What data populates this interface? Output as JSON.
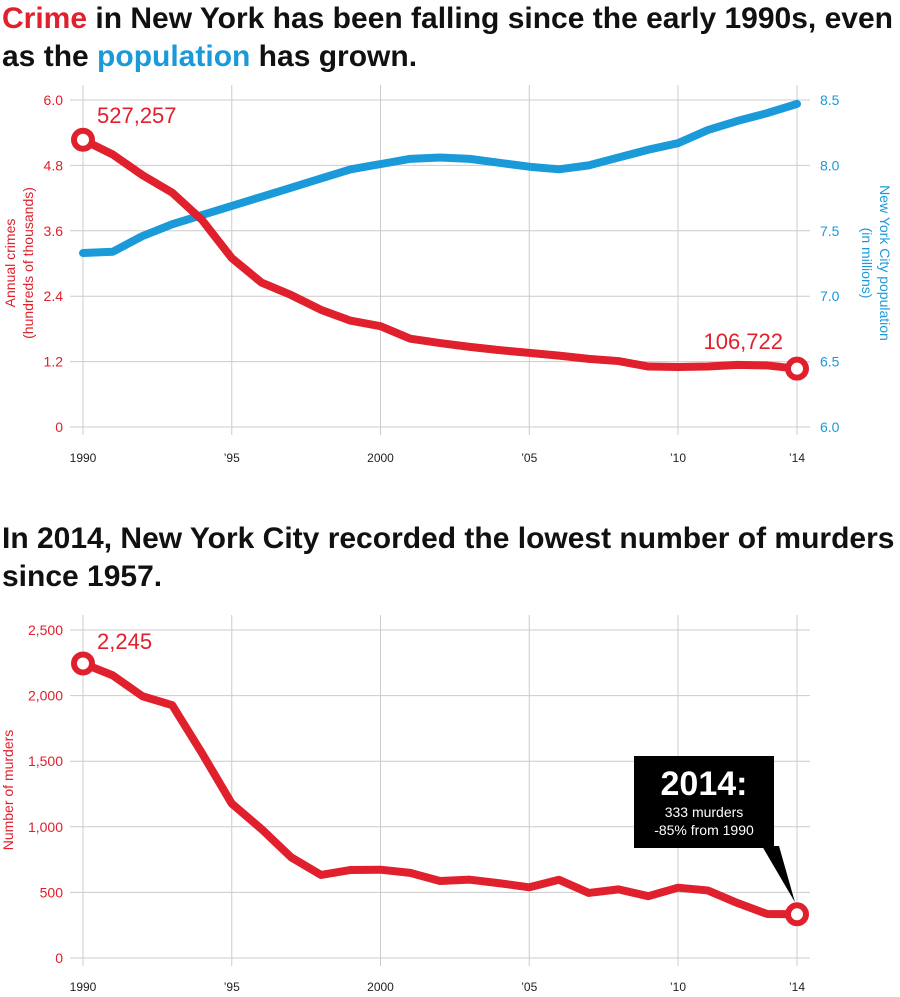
{
  "titles": {
    "top": {
      "crime": "Crime",
      "mid": " in New York has been falling since the early 1990s, even as the ",
      "population": "population",
      "end": " has grown."
    },
    "bottom": "In 2014, New York City recorded the lowest number of murders since 1957."
  },
  "colors": {
    "crime": "#e0202c",
    "population": "#1a9ad9",
    "grid": "#cccccc",
    "callout_bg": "#000000"
  },
  "chart_data": [
    {
      "type": "line",
      "x": [
        1990,
        1991,
        1992,
        1993,
        1994,
        1995,
        1996,
        1997,
        1998,
        1999,
        2000,
        2001,
        2002,
        2003,
        2004,
        2005,
        2006,
        2007,
        2008,
        2009,
        2010,
        2011,
        2012,
        2013,
        2014
      ],
      "xticks": [
        1990,
        1995,
        2000,
        2005,
        2010,
        2014
      ],
      "xtick_labels": [
        "1990",
        "’95",
        "2000",
        "’05",
        "’10",
        "’14"
      ],
      "xlim": [
        1990,
        2014
      ],
      "left_axis": {
        "label_line1": "Annual crimes",
        "label_line2": "(hundreds of thousands)",
        "ylim": [
          0,
          6.0
        ],
        "ticks": [
          0,
          1.2,
          2.4,
          3.6,
          4.8,
          6.0
        ],
        "tick_labels": [
          "0",
          "1.2",
          "2.4",
          "3.6",
          "4.8",
          "6.0"
        ]
      },
      "right_axis": {
        "label_line1": "New York City population",
        "label_line2": "(in millions)",
        "ylim": [
          6.0,
          8.5
        ],
        "ticks": [
          6.0,
          6.5,
          7.0,
          7.5,
          8.0,
          8.5
        ],
        "tick_labels": [
          "6.0",
          "6.5",
          "7.0",
          "7.5",
          "8.0",
          "8.5"
        ]
      },
      "series": [
        {
          "name": "Crime",
          "axis": "left",
          "values": [
            5.27,
            5.0,
            4.62,
            4.3,
            3.8,
            3.1,
            2.65,
            2.42,
            2.15,
            1.95,
            1.85,
            1.62,
            1.54,
            1.47,
            1.41,
            1.36,
            1.31,
            1.25,
            1.21,
            1.11,
            1.1,
            1.11,
            1.14,
            1.13,
            1.07
          ]
        },
        {
          "name": "Population",
          "axis": "right",
          "values": [
            7.33,
            7.34,
            7.46,
            7.55,
            7.62,
            7.69,
            7.76,
            7.83,
            7.9,
            7.97,
            8.01,
            8.05,
            8.06,
            8.05,
            8.02,
            7.99,
            7.97,
            8.0,
            8.06,
            8.12,
            8.17,
            8.27,
            8.34,
            8.4,
            8.47
          ]
        }
      ],
      "annotations": {
        "start": "527,257",
        "end": "106,722"
      }
    },
    {
      "type": "line",
      "x": [
        1990,
        1991,
        1992,
        1993,
        1994,
        1995,
        1996,
        1997,
        1998,
        1999,
        2000,
        2001,
        2002,
        2003,
        2004,
        2005,
        2006,
        2007,
        2008,
        2009,
        2010,
        2011,
        2012,
        2013,
        2014
      ],
      "xticks": [
        1990,
        1995,
        2000,
        2005,
        2010,
        2014
      ],
      "xtick_labels": [
        "1990",
        "’95",
        "2000",
        "’05",
        "’10",
        "’14"
      ],
      "xlim": [
        1990,
        2014
      ],
      "left_axis": {
        "label": "Number of murders",
        "ylim": [
          0,
          2500
        ],
        "ticks": [
          0,
          500,
          1000,
          1500,
          2000,
          2500
        ],
        "tick_labels": [
          "0",
          "500",
          "1,000",
          "1,500",
          "2,000",
          "2,500"
        ]
      },
      "series": [
        {
          "name": "Murders",
          "values": [
            2245,
            2154,
            1995,
            1927,
            1561,
            1177,
            983,
            767,
            633,
            671,
            673,
            649,
            587,
            597,
            570,
            539,
            596,
            496,
            523,
            471,
            536,
            515,
            419,
            335,
            333
          ]
        }
      ],
      "annotations": {
        "start": "2,245",
        "callout_year": "2014:",
        "callout_line1": "333 murders",
        "callout_line2": "-85% from 1990"
      }
    }
  ]
}
